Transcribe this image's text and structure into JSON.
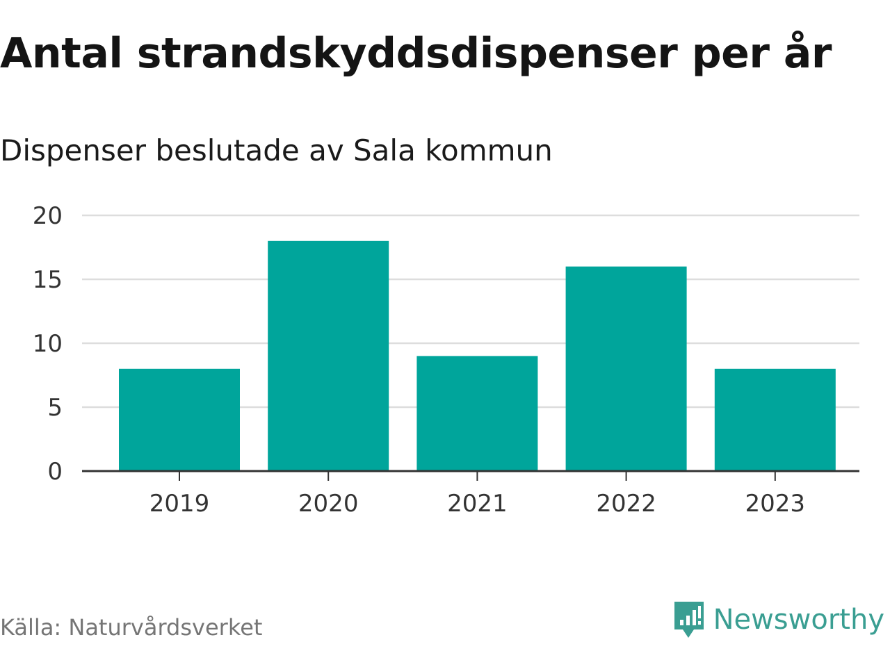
{
  "colors": {
    "bar": "#00a59b",
    "grid": "#dddddd",
    "axis": "#333333",
    "brand": "#3a9e92",
    "source": "#757575"
  },
  "chart_data": {
    "type": "bar",
    "title": "Antal strandskyddsdispenser per år",
    "subtitle": "Dispenser beslutade av Sala kommun",
    "categories": [
      "2019",
      "2020",
      "2021",
      "2022",
      "2023"
    ],
    "values": [
      8,
      18,
      9,
      16,
      8
    ],
    "xlabel": "",
    "ylabel": "",
    "ylim": [
      0,
      20
    ],
    "yticks": [
      "0",
      "5",
      "10",
      "15",
      "20"
    ],
    "grid": true
  },
  "footer": {
    "source": "Källa: Naturvårdsverket",
    "brand": "Newsworthy"
  }
}
